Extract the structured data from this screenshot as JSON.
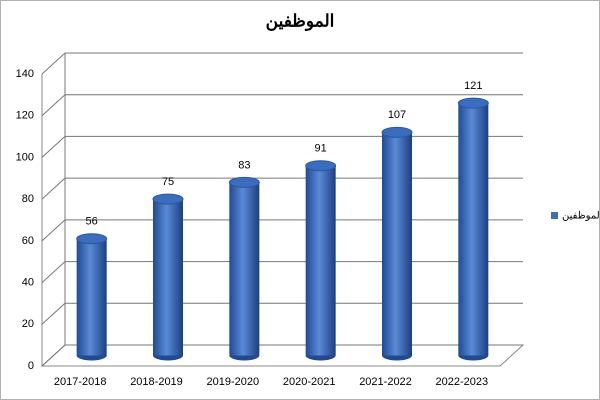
{
  "chart_data": {
    "type": "bar",
    "title": "الموظفين",
    "categories": [
      "2017-2018",
      "2018-2019",
      "2019-2020",
      "2020-2021",
      "2021-2022",
      "2022-2023"
    ],
    "series": [
      {
        "name": "الموظفين",
        "color": "#3a6cc0",
        "values": [
          56,
          75,
          83,
          91,
          107,
          121
        ]
      }
    ],
    "ylim": [
      0,
      140
    ],
    "yticks": [
      0,
      20,
      40,
      60,
      80,
      100,
      120,
      140
    ],
    "grid": true,
    "legend": "right"
  }
}
